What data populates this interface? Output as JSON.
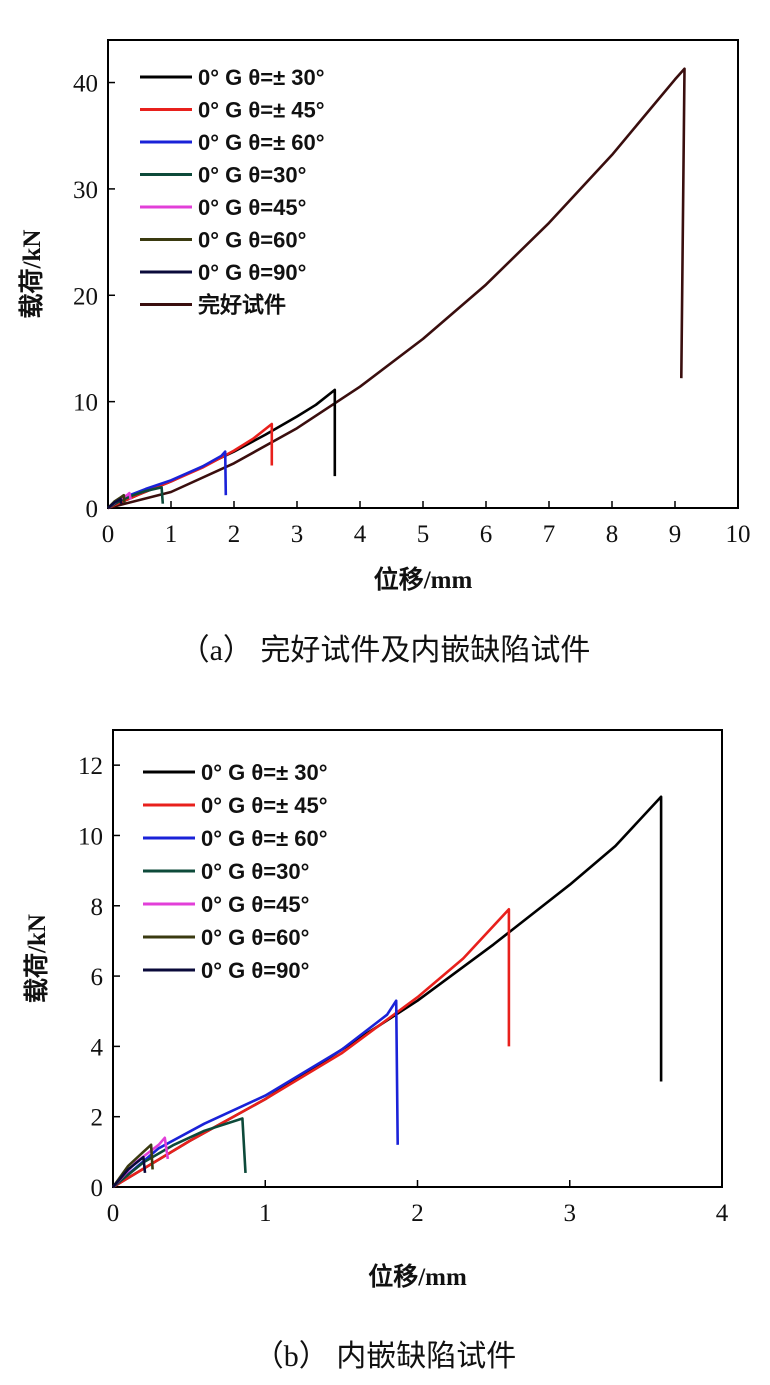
{
  "chart_data": [
    {
      "type": "line",
      "caption": "（a） 完好试件及内嵌缺陷试件",
      "xlabel": "位移/mm",
      "ylabel": "载荷/kN",
      "xlim": [
        0,
        10
      ],
      "ylim": [
        0,
        44
      ],
      "xticks": [
        "0",
        "1",
        "2",
        "3",
        "4",
        "5",
        "6",
        "7",
        "8",
        "9",
        "10"
      ],
      "yticks": [
        "0",
        "10",
        "20",
        "30",
        "40"
      ],
      "legend_position": "top-left",
      "series": [
        {
          "name": "0° G θ=± 30°",
          "color": "#000000",
          "points": [
            [
              0,
              0
            ],
            [
              0.5,
              1.3
            ],
            [
              1,
              2.5
            ],
            [
              1.5,
              3.9
            ],
            [
              2,
              5.3
            ],
            [
              2.5,
              6.9
            ],
            [
              3,
              8.6
            ],
            [
              3.3,
              9.7
            ],
            [
              3.6,
              11.1
            ],
            [
              3.6,
              3.0
            ]
          ]
        },
        {
          "name": "0° G θ=± 45°",
          "color": "#e8201c",
          "points": [
            [
              0,
              0
            ],
            [
              0.5,
              1.3
            ],
            [
              1,
              2.5
            ],
            [
              1.5,
              3.8
            ],
            [
              2,
              5.4
            ],
            [
              2.3,
              6.5
            ],
            [
              2.6,
              7.9
            ],
            [
              2.6,
              4.0
            ]
          ]
        },
        {
          "name": "0° G θ=± 60°",
          "color": "#1a22d8",
          "points": [
            [
              0,
              0
            ],
            [
              0.3,
              1.1
            ],
            [
              0.6,
              1.8
            ],
            [
              1,
              2.6
            ],
            [
              1.5,
              3.9
            ],
            [
              1.8,
              4.9
            ],
            [
              1.86,
              5.3
            ],
            [
              1.87,
              1.2
            ]
          ]
        },
        {
          "name": "0° G θ=30°",
          "color": "#0d4a3a",
          "points": [
            [
              0,
              0
            ],
            [
              0.2,
              0.7
            ],
            [
              0.4,
              1.2
            ],
            [
              0.6,
              1.6
            ],
            [
              0.85,
              1.95
            ],
            [
              0.87,
              0.4
            ]
          ]
        },
        {
          "name": "0° G θ=45°",
          "color": "#e23fd8",
          "points": [
            [
              0,
              0
            ],
            [
              0.15,
              0.7
            ],
            [
              0.3,
              1.2
            ],
            [
              0.34,
              1.4
            ],
            [
              0.36,
              0.8
            ]
          ]
        },
        {
          "name": "0° G θ=60°",
          "color": "#3a3a10",
          "points": [
            [
              0,
              0
            ],
            [
              0.1,
              0.6
            ],
            [
              0.2,
              1.0
            ],
            [
              0.25,
              1.2
            ],
            [
              0.26,
              0.5
            ]
          ]
        },
        {
          "name": "0° G θ=90°",
          "color": "#0a0a3a",
          "points": [
            [
              0,
              0
            ],
            [
              0.1,
              0.5
            ],
            [
              0.2,
              0.85
            ],
            [
              0.21,
              0.4
            ]
          ]
        },
        {
          "name": "完好试件",
          "color": "#3a0e0e",
          "points": [
            [
              0,
              0
            ],
            [
              1,
              1.5
            ],
            [
              2,
              4.2
            ],
            [
              3,
              7.5
            ],
            [
              4,
              11.4
            ],
            [
              5,
              15.9
            ],
            [
              6,
              21.0
            ],
            [
              7,
              26.8
            ],
            [
              8,
              33.2
            ],
            [
              9,
              40.3
            ],
            [
              9.15,
              41.3
            ],
            [
              9.1,
              12.2
            ]
          ]
        }
      ]
    },
    {
      "type": "line",
      "caption": "（b） 内嵌缺陷试件",
      "xlabel": "位移/mm",
      "ylabel": "载荷/kN",
      "xlim": [
        0,
        4
      ],
      "ylim": [
        0,
        13
      ],
      "xticks": [
        "0",
        "1",
        "2",
        "3",
        "4"
      ],
      "yticks": [
        "0",
        "2",
        "4",
        "6",
        "8",
        "10",
        "12"
      ],
      "legend_position": "top-left",
      "series": [
        {
          "name": "0° G θ=± 30°",
          "color": "#000000",
          "points": [
            [
              0,
              0
            ],
            [
              0.5,
              1.3
            ],
            [
              1,
              2.5
            ],
            [
              1.5,
              3.9
            ],
            [
              2,
              5.3
            ],
            [
              2.5,
              6.9
            ],
            [
              3,
              8.6
            ],
            [
              3.3,
              9.7
            ],
            [
              3.6,
              11.1
            ],
            [
              3.6,
              3.0
            ]
          ]
        },
        {
          "name": "0° G θ=± 45°",
          "color": "#e8201c",
          "points": [
            [
              0,
              0
            ],
            [
              0.5,
              1.3
            ],
            [
              1,
              2.5
            ],
            [
              1.5,
              3.8
            ],
            [
              2,
              5.4
            ],
            [
              2.3,
              6.5
            ],
            [
              2.6,
              7.9
            ],
            [
              2.6,
              4.0
            ]
          ]
        },
        {
          "name": "0° G θ=± 60°",
          "color": "#1a22d8",
          "points": [
            [
              0,
              0
            ],
            [
              0.3,
              1.1
            ],
            [
              0.6,
              1.8
            ],
            [
              1,
              2.6
            ],
            [
              1.5,
              3.9
            ],
            [
              1.8,
              4.9
            ],
            [
              1.86,
              5.3
            ],
            [
              1.87,
              1.2
            ]
          ]
        },
        {
          "name": "0° G θ=30°",
          "color": "#0d4a3a",
          "points": [
            [
              0,
              0
            ],
            [
              0.2,
              0.7
            ],
            [
              0.4,
              1.2
            ],
            [
              0.6,
              1.6
            ],
            [
              0.85,
              1.95
            ],
            [
              0.87,
              0.4
            ]
          ]
        },
        {
          "name": "0° G θ=45°",
          "color": "#e23fd8",
          "points": [
            [
              0,
              0
            ],
            [
              0.15,
              0.7
            ],
            [
              0.3,
              1.2
            ],
            [
              0.34,
              1.4
            ],
            [
              0.36,
              0.8
            ]
          ]
        },
        {
          "name": "0° G θ=60°",
          "color": "#3a3a10",
          "points": [
            [
              0,
              0
            ],
            [
              0.1,
              0.6
            ],
            [
              0.2,
              1.0
            ],
            [
              0.25,
              1.2
            ],
            [
              0.26,
              0.5
            ]
          ]
        },
        {
          "name": "0° G θ=90°",
          "color": "#0a0a3a",
          "points": [
            [
              0,
              0
            ],
            [
              0.1,
              0.5
            ],
            [
              0.2,
              0.85
            ],
            [
              0.21,
              0.4
            ]
          ]
        }
      ]
    }
  ]
}
